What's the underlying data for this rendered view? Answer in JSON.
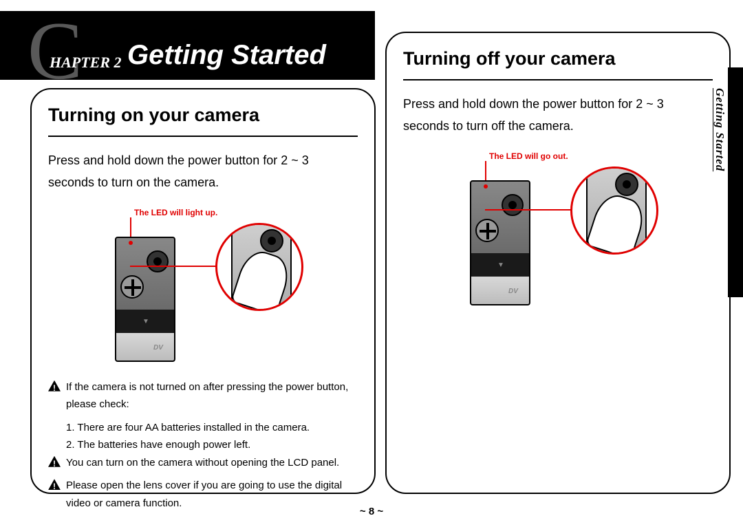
{
  "chapter": {
    "letter": "C",
    "label": "HAPTER 2",
    "title": "Getting Started"
  },
  "left": {
    "heading": "Turning on your camera",
    "body": "Press and hold down the power button for 2 ~ 3 seconds to turn on the camera.",
    "led_label": "The LED will light up.",
    "notes": {
      "n1": "If the camera is not turned on after pressing the power button, please check:",
      "n1a": "1. There are four AA batteries installed in the camera.",
      "n1b": "2. The batteries have enough power left.",
      "n2": "You can turn on the camera without opening the LCD panel.",
      "n3": "Please open the lens cover if you are going to use the digital video or camera function."
    }
  },
  "right": {
    "heading": "Turning off your camera",
    "body": "Press and hold down the power button for 2 ~ 3 seconds to turn off the camera.",
    "led_label": "The LED will go out."
  },
  "side_tab": "Getting Started",
  "page": "~ 8 ~",
  "colors": {
    "accent": "#e00000",
    "black": "#000000",
    "white": "#ffffff",
    "grey_cap_c": "#595959"
  }
}
